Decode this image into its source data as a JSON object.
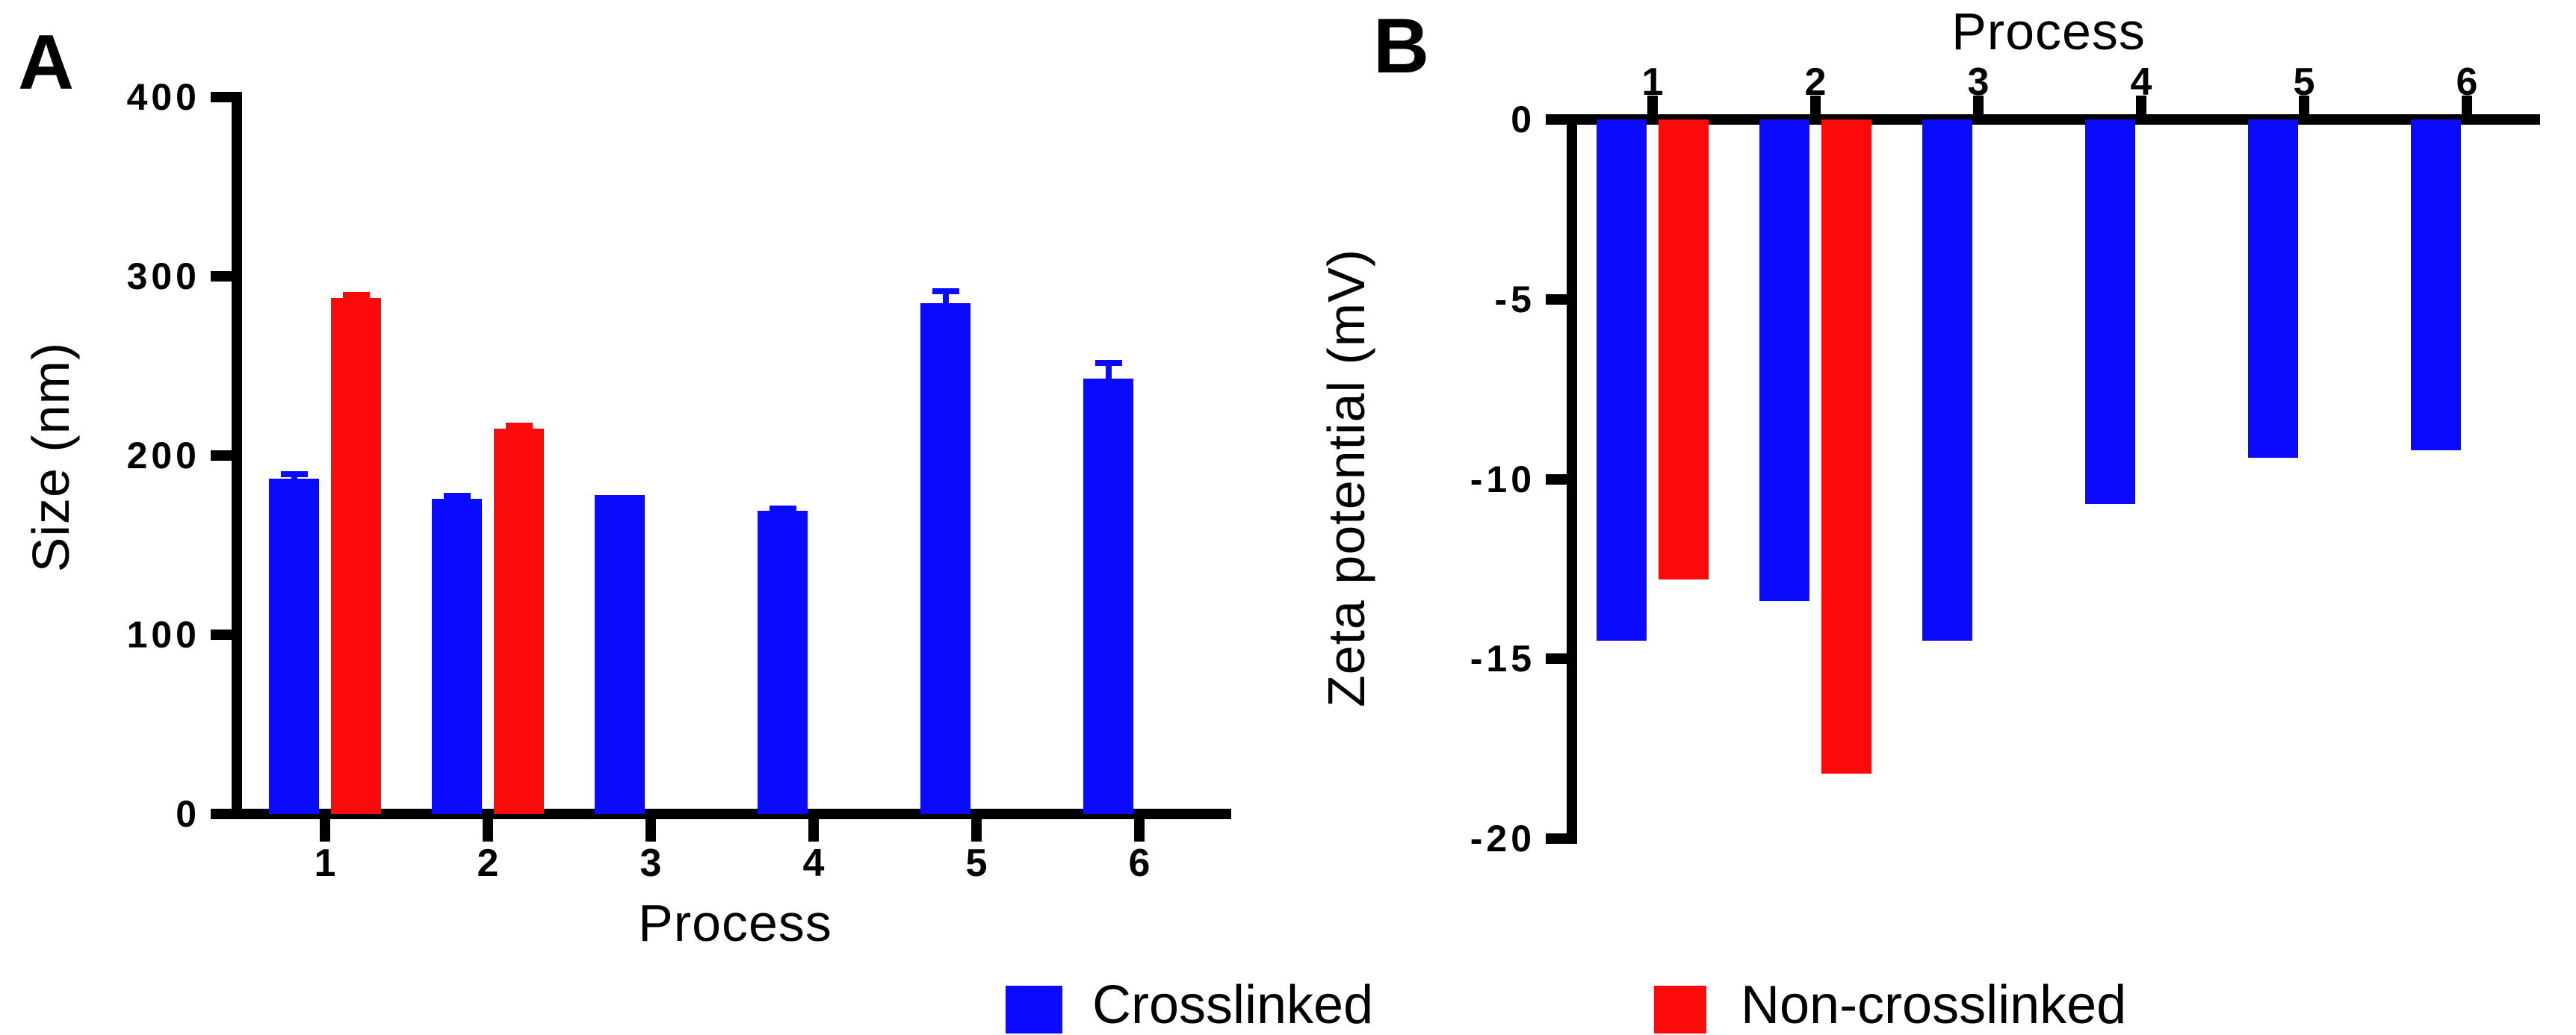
{
  "figure_title": "",
  "legend": {
    "items": [
      {
        "label": "Crosslinked",
        "color": "#0a0aff"
      },
      {
        "label": "Non-crosslinked",
        "color": "#fa0a0a"
      }
    ]
  },
  "chart_data": [
    {
      "type": "bar",
      "panel_label": "A",
      "title": "",
      "xlabel": "Process",
      "ylabel": "Size (nm)",
      "categories": [
        "1",
        "2",
        "3",
        "4",
        "5",
        "6"
      ],
      "series": [
        {
          "name": "Crosslinked",
          "color": "#0a0aff",
          "values": [
            187,
            176,
            178,
            169,
            285,
            243
          ],
          "errors": [
            3,
            2,
            0,
            2,
            7,
            9
          ]
        },
        {
          "name": "Non-crosslinked",
          "color": "#fa0a0a",
          "values": [
            288,
            215,
            null,
            null,
            null,
            null
          ],
          "errors": [
            2,
            2,
            null,
            null,
            null,
            null
          ]
        }
      ],
      "ylim": [
        0,
        400
      ],
      "yticks": [
        0,
        100,
        200,
        300,
        400
      ],
      "x_axis_position": "bottom",
      "grid": false,
      "error_bars": "upper caps on bars"
    },
    {
      "type": "bar",
      "panel_label": "B",
      "title": "",
      "xlabel": "Process",
      "ylabel": "Zeta potential (mV)",
      "categories": [
        "1",
        "2",
        "3",
        "4",
        "5",
        "6"
      ],
      "series": [
        {
          "name": "Crosslinked",
          "color": "#0a0aff",
          "values": [
            -14.5,
            -13.4,
            -14.5,
            -10.7,
            -9.4,
            -9.2
          ],
          "errors": [
            0,
            0,
            0,
            0,
            0,
            0
          ]
        },
        {
          "name": "Non-crosslinked",
          "color": "#fa0a0a",
          "values": [
            -12.8,
            -18.2,
            null,
            null,
            null,
            null
          ],
          "errors": [
            0,
            0,
            null,
            null,
            null,
            null
          ]
        }
      ],
      "ylim": [
        0,
        -20
      ],
      "yticks": [
        0,
        -5,
        -10,
        -15,
        -20
      ],
      "x_axis_position": "top",
      "grid": false,
      "error_bars": "none"
    }
  ]
}
